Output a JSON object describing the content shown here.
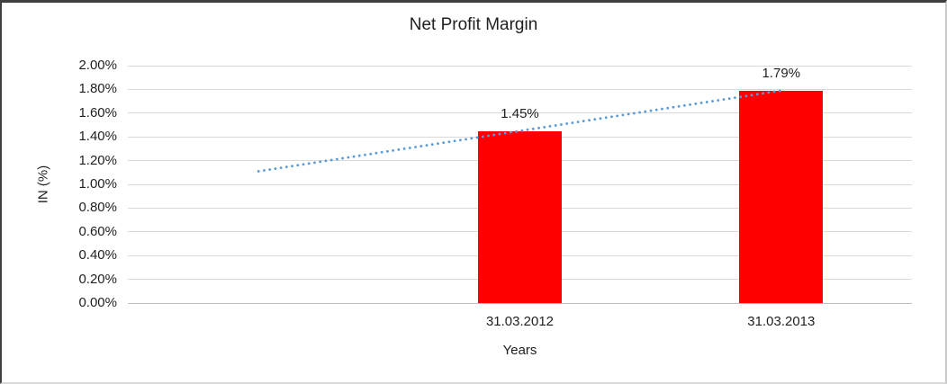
{
  "chart": {
    "title": "Net Profit Margin",
    "ylabel": "IN (%)",
    "xlabel": "Years"
  },
  "chart_data": {
    "type": "bar",
    "title": "Net Profit Margin",
    "xlabel": "Years",
    "ylabel": "IN (%)",
    "categories": [
      "31.03.2012",
      "31.03.2013"
    ],
    "values": [
      1.45,
      1.79
    ],
    "data_labels": [
      "1.45%",
      "1.79%"
    ],
    "bar_color": "#ff0000",
    "ylim": [
      0,
      2
    ],
    "ytick_step": 0.2,
    "yticks": [
      {
        "label": "2.00%",
        "value": 2.0
      },
      {
        "label": "1.80%",
        "value": 1.8
      },
      {
        "label": "1.60%",
        "value": 1.6
      },
      {
        "label": "1.40%",
        "value": 1.4
      },
      {
        "label": "1.20%",
        "value": 1.2
      },
      {
        "label": "1.00%",
        "value": 1.0
      },
      {
        "label": "0.80%",
        "value": 0.8
      },
      {
        "label": "0.60%",
        "value": 0.6
      },
      {
        "label": "0.40%",
        "value": 0.4
      },
      {
        "label": "0.20%",
        "value": 0.2
      },
      {
        "label": "0.00%",
        "value": 0.0
      }
    ],
    "grid": "horizontal",
    "legend": "none",
    "trendline": {
      "style": "dotted",
      "color": "#5b9bd5",
      "points": [
        {
          "slot": 0,
          "value": 1.11
        },
        {
          "slot": 2,
          "value": 1.79
        }
      ]
    },
    "layout": {
      "category_slots": 3,
      "category_slot_indices": [
        1,
        2
      ]
    }
  }
}
